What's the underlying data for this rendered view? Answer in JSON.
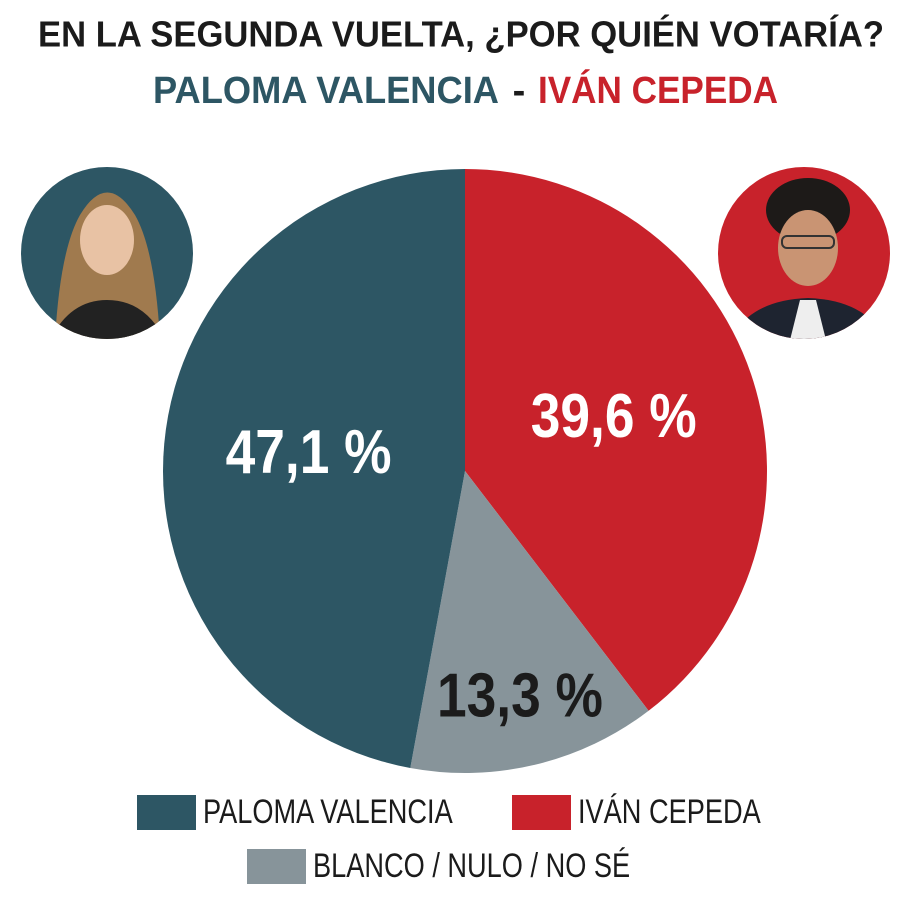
{
  "chart_data": {
    "type": "pie",
    "title": "EN LA SEGUNDA VUELTA, ¿POR QUIÉN VOTARÍA?",
    "subtitle_separator": "-",
    "categories": [
      "IVÁN CEPEDA",
      "BLANCO / NULO / NO SÉ",
      "PALOMA VALENCIA"
    ],
    "values": [
      39.6,
      13.3,
      47.1
    ],
    "value_labels": [
      "39,6 %",
      "13,3 %",
      "47,1 %"
    ],
    "colors": [
      "#c8222b",
      "#87949a",
      "#2d5664"
    ],
    "label_colors": [
      "#ffffff",
      "#1b1b1b",
      "#ffffff"
    ],
    "legend_order": [
      2,
      0,
      1
    ]
  }
}
